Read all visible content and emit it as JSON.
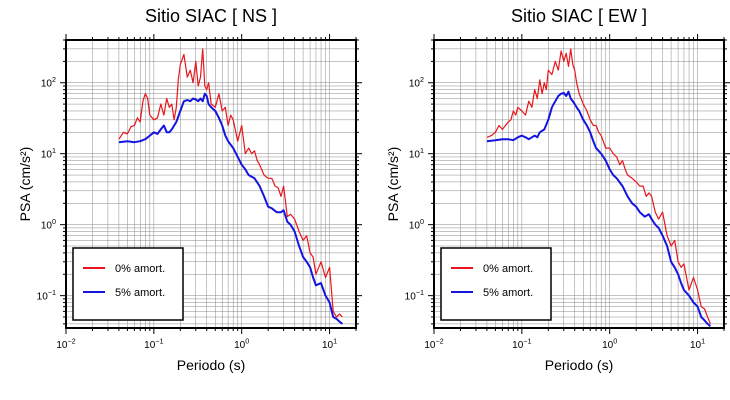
{
  "chart_data": [
    {
      "type": "line",
      "title": "Sitio SIAC [ NS ]",
      "xlabel": "Periodo (s)",
      "ylabel": "PSA (cm/s²)",
      "xscale": "log",
      "yscale": "log",
      "xlim": [
        0.01,
        20
      ],
      "ylim": [
        0.035,
        400
      ],
      "grid": true,
      "legend_position": "bottom-left",
      "xticks": [
        0.01,
        0.1,
        1,
        10
      ],
      "yticks": [
        0.1,
        1,
        10,
        100
      ],
      "series": [
        {
          "name": "0% amort.",
          "color": "#e8161b",
          "x": [
            0.04,
            0.045,
            0.05,
            0.055,
            0.06,
            0.065,
            0.07,
            0.075,
            0.08,
            0.085,
            0.09,
            0.1,
            0.11,
            0.12,
            0.13,
            0.14,
            0.15,
            0.16,
            0.17,
            0.18,
            0.19,
            0.2,
            0.22,
            0.24,
            0.26,
            0.28,
            0.3,
            0.32,
            0.34,
            0.36,
            0.38,
            0.4,
            0.42,
            0.45,
            0.5,
            0.55,
            0.6,
            0.65,
            0.7,
            0.75,
            0.8,
            0.9,
            1.0,
            1.1,
            1.2,
            1.3,
            1.4,
            1.5,
            1.6,
            1.8,
            2.0,
            2.2,
            2.4,
            2.6,
            2.8,
            3.0,
            3.3,
            3.6,
            4.0,
            4.5,
            5.0,
            5.5,
            6.0,
            6.5,
            7.0,
            8.0,
            9.0,
            10.0,
            11.0,
            12.0,
            13.0,
            14.0
          ],
          "y": [
            16,
            20,
            19,
            24,
            25,
            32,
            28,
            55,
            70,
            60,
            35,
            30,
            32,
            50,
            35,
            60,
            45,
            50,
            30,
            45,
            110,
            180,
            250,
            120,
            150,
            100,
            200,
            90,
            120,
            300,
            90,
            80,
            100,
            50,
            45,
            70,
            40,
            45,
            25,
            35,
            30,
            15,
            25,
            10,
            12,
            10,
            11,
            8,
            7,
            5,
            4.5,
            4.5,
            3.5,
            3.3,
            2.5,
            3.5,
            1.3,
            1.4,
            1.2,
            0.8,
            0.6,
            0.7,
            0.4,
            0.35,
            0.2,
            0.3,
            0.18,
            0.25,
            0.06,
            0.05,
            0.055,
            0.05
          ]
        },
        {
          "name": "5% amort.",
          "color": "#1515e0",
          "x": [
            0.04,
            0.05,
            0.06,
            0.07,
            0.08,
            0.09,
            0.1,
            0.11,
            0.12,
            0.13,
            0.14,
            0.15,
            0.16,
            0.18,
            0.2,
            0.22,
            0.24,
            0.26,
            0.28,
            0.3,
            0.32,
            0.34,
            0.36,
            0.38,
            0.4,
            0.42,
            0.45,
            0.5,
            0.55,
            0.6,
            0.65,
            0.7,
            0.8,
            0.9,
            1.0,
            1.1,
            1.2,
            1.4,
            1.6,
            1.8,
            2.0,
            2.2,
            2.5,
            2.8,
            3.0,
            3.3,
            3.6,
            4.0,
            4.5,
            5.0,
            5.5,
            6.0,
            6.5,
            7.0,
            8.0,
            9.0,
            10.0,
            11.0,
            12.0,
            13.0,
            14.0
          ],
          "y": [
            14.5,
            15,
            14.5,
            15,
            16,
            18,
            20,
            19,
            22,
            25,
            20,
            20,
            22,
            28,
            40,
            55,
            57,
            55,
            60,
            58,
            55,
            60,
            55,
            70,
            65,
            50,
            45,
            40,
            32,
            25,
            18,
            15,
            12,
            9,
            7,
            6,
            5,
            4.5,
            3.5,
            2.5,
            1.8,
            1.7,
            1.5,
            1.5,
            1.6,
            1.1,
            1.0,
            0.8,
            0.5,
            0.35,
            0.3,
            0.25,
            0.18,
            0.14,
            0.15,
            0.1,
            0.08,
            0.05,
            0.047,
            0.043,
            0.04
          ]
        }
      ]
    },
    {
      "type": "line",
      "title": "Sitio SIAC [ EW ]",
      "xlabel": "Periodo (s)",
      "ylabel": "PSA (cm/s²)",
      "xscale": "log",
      "yscale": "log",
      "xlim": [
        0.01,
        20
      ],
      "ylim": [
        0.035,
        400
      ],
      "grid": true,
      "legend_position": "bottom-left",
      "xticks": [
        0.01,
        0.1,
        1,
        10
      ],
      "yticks": [
        0.1,
        1,
        10,
        100
      ],
      "series": [
        {
          "name": "0% amort.",
          "color": "#e8161b",
          "x": [
            0.04,
            0.045,
            0.05,
            0.055,
            0.06,
            0.065,
            0.07,
            0.075,
            0.08,
            0.085,
            0.09,
            0.1,
            0.11,
            0.12,
            0.13,
            0.14,
            0.15,
            0.16,
            0.17,
            0.18,
            0.19,
            0.2,
            0.22,
            0.24,
            0.26,
            0.28,
            0.3,
            0.32,
            0.34,
            0.36,
            0.38,
            0.4,
            0.42,
            0.45,
            0.5,
            0.55,
            0.6,
            0.65,
            0.7,
            0.75,
            0.8,
            0.9,
            1.0,
            1.1,
            1.2,
            1.3,
            1.4,
            1.5,
            1.6,
            1.8,
            2.0,
            2.2,
            2.4,
            2.6,
            2.8,
            3.0,
            3.3,
            3.6,
            4.0,
            4.5,
            5.0,
            5.5,
            6.0,
            6.5,
            7.0,
            8.0,
            9.0,
            10.0,
            11.0,
            12.0,
            13.0,
            14.0
          ],
          "y": [
            17,
            18,
            20,
            25,
            22,
            25,
            28,
            30,
            40,
            35,
            45,
            40,
            35,
            55,
            45,
            80,
            60,
            110,
            70,
            100,
            80,
            150,
            130,
            200,
            150,
            280,
            200,
            260,
            170,
            300,
            180,
            150,
            100,
            70,
            50,
            40,
            30,
            25,
            25,
            20,
            18,
            12,
            12,
            10,
            9,
            7,
            8,
            6,
            5,
            4.5,
            4,
            3.5,
            3.5,
            2.5,
            2.8,
            2.5,
            1.5,
            1.2,
            1.5,
            0.7,
            0.5,
            0.6,
            0.3,
            0.25,
            0.28,
            0.12,
            0.18,
            0.12,
            0.07,
            0.065,
            0.05,
            0.04
          ]
        },
        {
          "name": "5% amort.",
          "color": "#1515e0",
          "x": [
            0.04,
            0.05,
            0.06,
            0.07,
            0.08,
            0.09,
            0.1,
            0.11,
            0.12,
            0.13,
            0.14,
            0.15,
            0.16,
            0.18,
            0.2,
            0.22,
            0.24,
            0.26,
            0.28,
            0.3,
            0.32,
            0.34,
            0.36,
            0.38,
            0.4,
            0.42,
            0.45,
            0.5,
            0.55,
            0.6,
            0.65,
            0.7,
            0.8,
            0.9,
            1.0,
            1.1,
            1.2,
            1.4,
            1.6,
            1.8,
            2.0,
            2.2,
            2.5,
            2.8,
            3.0,
            3.3,
            3.6,
            4.0,
            4.5,
            5.0,
            5.5,
            6.0,
            6.5,
            7.0,
            8.0,
            9.0,
            10.0,
            11.0,
            12.0,
            13.0,
            14.0
          ],
          "y": [
            15,
            15.5,
            16,
            16,
            15.5,
            17,
            18,
            17,
            16,
            17,
            18,
            17,
            20,
            22,
            30,
            45,
            55,
            65,
            70,
            72,
            65,
            75,
            60,
            55,
            50,
            45,
            40,
            30,
            25,
            20,
            15,
            12,
            10,
            8,
            6,
            5,
            4.5,
            3.5,
            2.5,
            2,
            1.8,
            1.5,
            1.3,
            1.4,
            1.2,
            1.0,
            0.9,
            0.7,
            0.5,
            0.3,
            0.25,
            0.2,
            0.15,
            0.12,
            0.1,
            0.08,
            0.07,
            0.05,
            0.045,
            0.04,
            0.037
          ]
        }
      ]
    }
  ]
}
